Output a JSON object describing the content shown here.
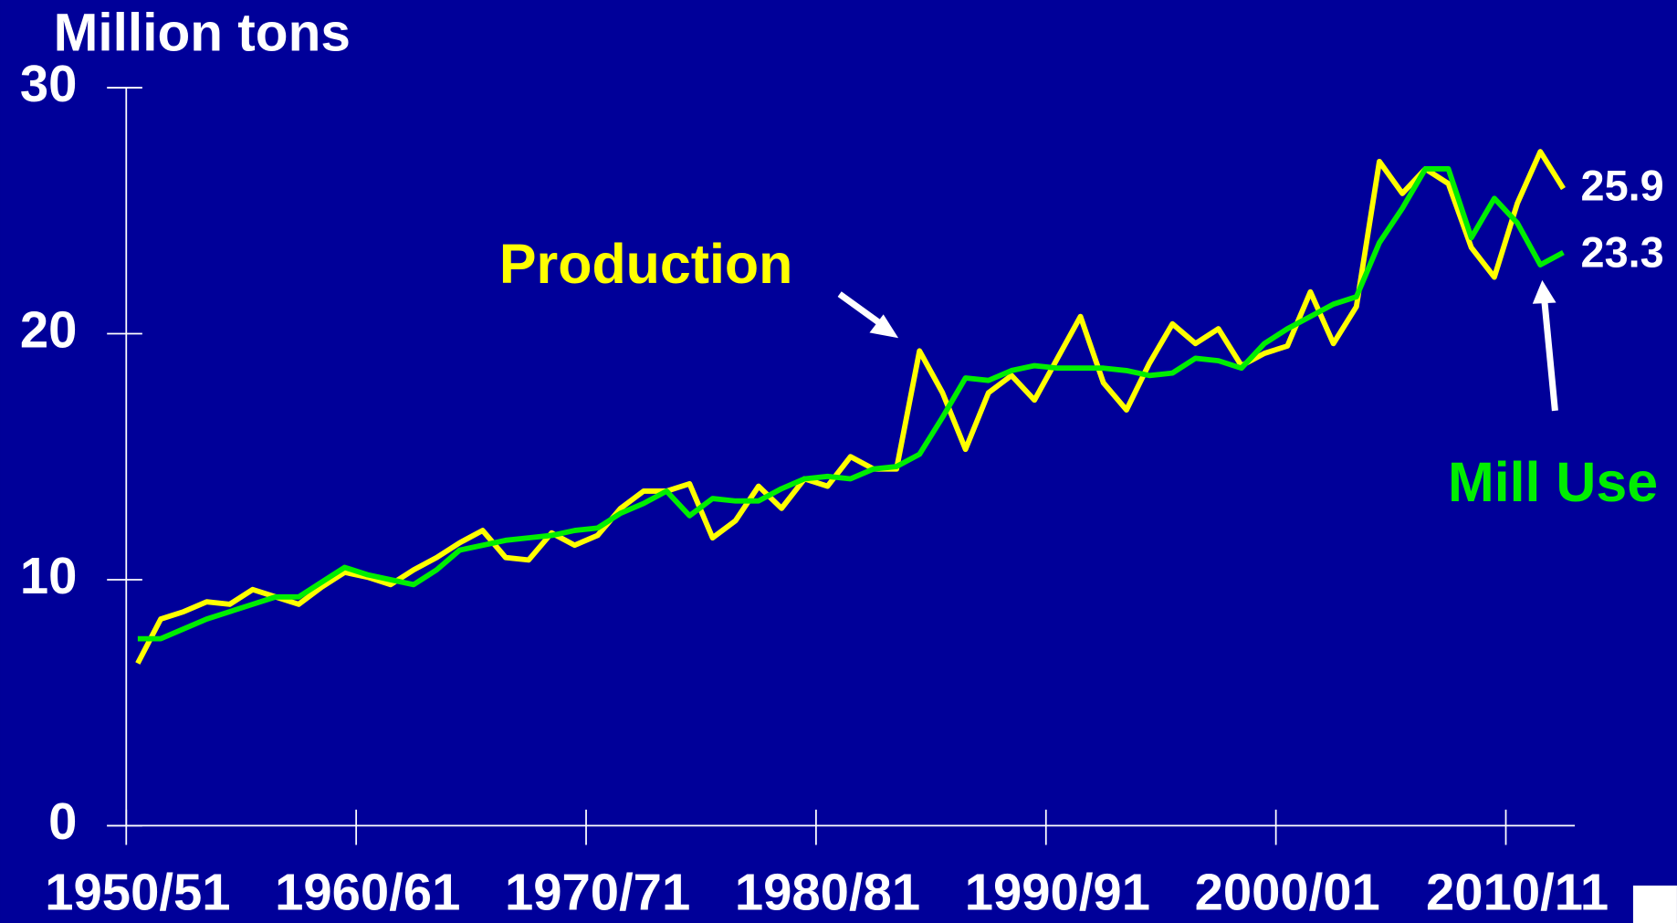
{
  "chart_data": {
    "type": "line",
    "y_axis_label": "Million tons",
    "categories": [
      "1950/51",
      null,
      null,
      null,
      null,
      null,
      null,
      null,
      null,
      null,
      "1960/61",
      null,
      null,
      null,
      null,
      null,
      null,
      null,
      null,
      null,
      "1970/71",
      null,
      null,
      null,
      null,
      null,
      null,
      null,
      null,
      null,
      "1980/81",
      null,
      null,
      null,
      null,
      null,
      null,
      null,
      null,
      null,
      "1990/91",
      null,
      null,
      null,
      null,
      null,
      null,
      null,
      null,
      null,
      "2000/01",
      null,
      null,
      null,
      null,
      null,
      null,
      null,
      null,
      null,
      "2010/11",
      null,
      null
    ],
    "series": [
      {
        "name": "Production",
        "color": "#ffff00",
        "values": [
          6.6,
          8.4,
          8.7,
          9.1,
          9.0,
          9.6,
          9.3,
          9.0,
          9.7,
          10.3,
          10.1,
          9.8,
          10.4,
          10.9,
          11.5,
          12.0,
          10.9,
          10.8,
          11.9,
          11.4,
          11.8,
          12.9,
          13.6,
          13.6,
          13.9,
          11.7,
          12.4,
          13.8,
          12.9,
          14.1,
          13.8,
          15.0,
          14.5,
          14.5,
          19.3,
          17.6,
          15.3,
          17.6,
          18.3,
          17.3,
          19.0,
          20.7,
          18.0,
          16.9,
          18.8,
          20.4,
          19.6,
          20.2,
          18.7,
          19.2,
          19.5,
          21.7,
          19.6,
          21.1,
          27.0,
          25.7,
          26.7,
          26.1,
          23.5,
          22.3,
          25.3,
          27.4,
          25.9
        ]
      },
      {
        "name": "Mill Use",
        "color": "#00ee00",
        "values": [
          7.6,
          7.6,
          8.0,
          8.4,
          8.7,
          9.0,
          9.3,
          9.3,
          9.9,
          10.5,
          10.2,
          10.0,
          9.8,
          10.4,
          11.2,
          11.4,
          11.6,
          11.7,
          11.8,
          12.0,
          12.1,
          12.7,
          13.1,
          13.6,
          12.6,
          13.3,
          13.2,
          13.2,
          13.7,
          14.1,
          14.2,
          14.1,
          14.5,
          14.6,
          15.1,
          16.6,
          18.2,
          18.1,
          18.5,
          18.7,
          18.6,
          18.6,
          18.6,
          18.5,
          18.3,
          18.4,
          19.0,
          18.9,
          18.6,
          19.6,
          20.2,
          20.7,
          21.2,
          21.5,
          23.7,
          25.1,
          26.7,
          26.7,
          23.9,
          25.5,
          24.5,
          22.8,
          23.3
        ]
      }
    ],
    "ylim": [
      0,
      30
    ],
    "yticks": [
      0,
      10,
      20,
      30
    ]
  }
}
